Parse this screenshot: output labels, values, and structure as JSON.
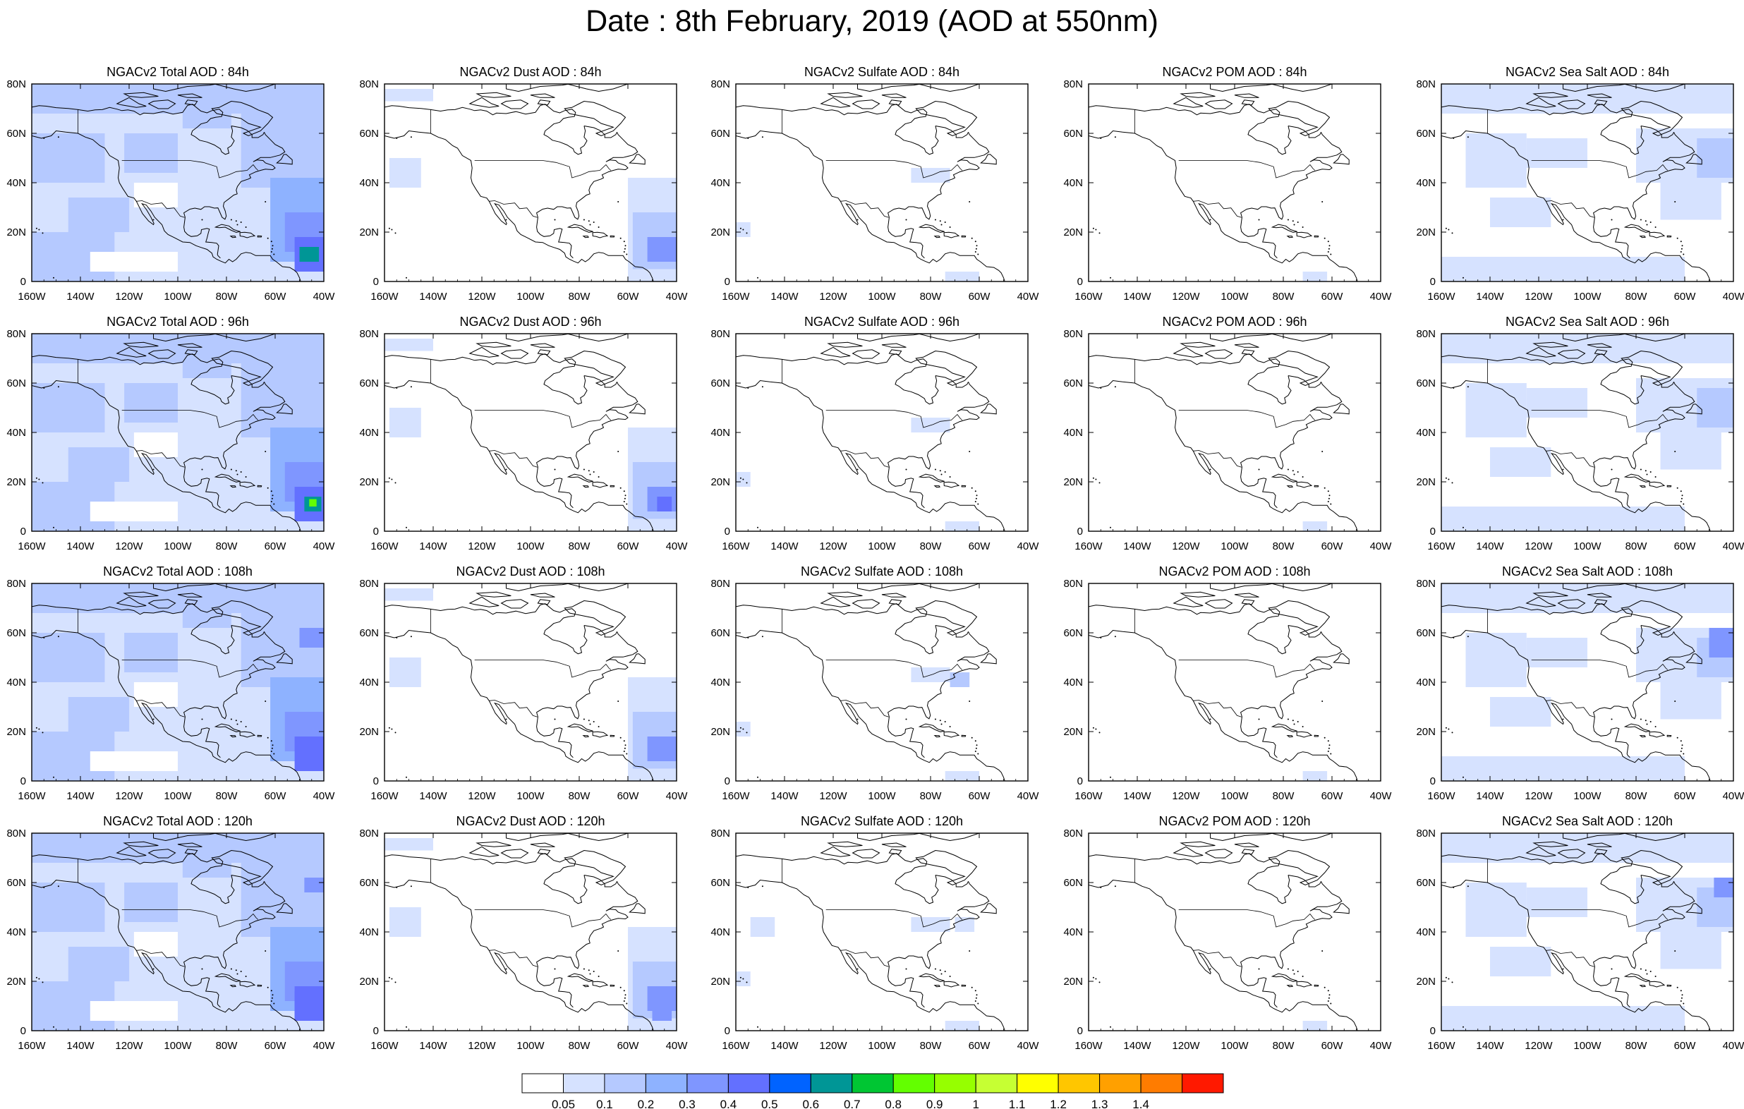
{
  "title": "Date : 8th February, 2019 (AOD at 550nm)",
  "axes": {
    "x_ticks": [
      "160W",
      "140W",
      "120W",
      "100W",
      "80W",
      "60W",
      "40W"
    ],
    "y_ticks": [
      "80N",
      "60N",
      "40N",
      "20N",
      "0"
    ],
    "lon_range": [
      -160,
      -40
    ],
    "lat_range": [
      0,
      80
    ]
  },
  "species": [
    "Total",
    "Dust",
    "Sulfate",
    "POM",
    "Sea Salt"
  ],
  "lead_times": [
    "84h",
    "96h",
    "108h",
    "120h"
  ],
  "panels": [
    [
      "NGACv2 Total AOD : 84h",
      "NGACv2 Dust AOD : 84h",
      "NGACv2 Sulfate AOD : 84h",
      "NGACv2 POM AOD : 84h",
      "NGACv2 Sea Salt AOD : 84h"
    ],
    [
      "NGACv2 Total AOD : 96h",
      "NGACv2 Dust AOD : 96h",
      "NGACv2 Sulfate AOD : 96h",
      "NGACv2 POM AOD : 96h",
      "NGACv2 Sea Salt AOD : 96h"
    ],
    [
      "NGACv2 Total AOD : 108h",
      "NGACv2 Dust AOD : 108h",
      "NGACv2 Sulfate AOD : 108h",
      "NGACv2 POM AOD : 108h",
      "NGACv2 Sea Salt AOD : 108h"
    ],
    [
      "NGACv2 Total AOD : 120h",
      "NGACv2 Dust AOD : 120h",
      "NGACv2 Sulfate AOD : 120h",
      "NGACv2 POM AOD : 120h",
      "NGACv2 Sea Salt  AOD : 120h"
    ]
  ],
  "colorbar": {
    "labels": [
      "0.05",
      "0.1",
      "0.2",
      "0.3",
      "0.4",
      "0.5",
      "0.6",
      "0.7",
      "0.8",
      "0.9",
      "1",
      "1.1",
      "1.2",
      "1.3",
      "1.4"
    ],
    "colors": [
      "#ffffff",
      "#d6e2ff",
      "#b5c9ff",
      "#8eb2ff",
      "#7f96ff",
      "#6370ff",
      "#0063ff",
      "#009696",
      "#00c633",
      "#63ff00",
      "#96ff00",
      "#c6ff33",
      "#ffff00",
      "#ffc600",
      "#ffa000",
      "#ff7c00",
      "#ff1900"
    ]
  }
}
